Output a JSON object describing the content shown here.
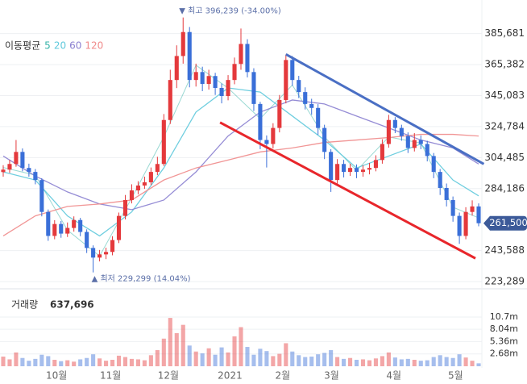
{
  "chart_data": {
    "type": "candlestick",
    "ylim": [
      220146,
      407681
    ],
    "yticks": [
      {
        "value": 223289,
        "label": "223,289"
      },
      {
        "value": 243588,
        "label": "243,588"
      },
      {
        "value": 284186,
        "label": "284,186"
      },
      {
        "value": 304485,
        "label": "304,485"
      },
      {
        "value": 324784,
        "label": "324,784"
      },
      {
        "value": 345083,
        "label": "345,083"
      },
      {
        "value": 365382,
        "label": "365,382"
      },
      {
        "value": 385681,
        "label": "385,681"
      }
    ],
    "xlim": [
      -0.5,
      74.5
    ],
    "xticks": [
      {
        "value": 8.3,
        "label": "10월"
      },
      {
        "value": 16.7,
        "label": "11월"
      },
      {
        "value": 25.7,
        "label": "12월"
      },
      {
        "value": 35.3,
        "label": "2021"
      },
      {
        "value": 43.5,
        "label": "2월"
      },
      {
        "value": 51.1,
        "label": "3월"
      },
      {
        "value": 60.8,
        "label": "4월"
      },
      {
        "value": 70.4,
        "label": "5월"
      }
    ],
    "grid": true,
    "up_color": "#e4393c",
    "down_color": "#3a6fd8",
    "candles": {
      "open": [
        295000,
        296600,
        300300,
        308200,
        297700,
        295100,
        289800,
        268900,
        253200,
        261000,
        254700,
        258400,
        263600,
        255800,
        245300,
        239000,
        241100,
        242700,
        250500,
        266300,
        276700,
        283000,
        286200,
        288300,
        295100,
        300300,
        329100,
        355300,
        371000,
        386700,
        355300,
        360500,
        352700,
        357900,
        350100,
        344800,
        355300,
        365800,
        378900,
        360500,
        339600,
        316000,
        313400,
        323900,
        342200,
        368400,
        355300,
        347400,
        339600,
        337000,
        323900,
        308200,
        289800,
        300300,
        295100,
        297700,
        295100,
        296600,
        297700,
        302900,
        313400,
        329100,
        323900,
        318600,
        310800,
        316000,
        313400,
        305500,
        295100,
        284600,
        276700,
        266300,
        253200,
        268900,
        272500
      ],
      "high": [
        299500,
        303000,
        316000,
        310500,
        300500,
        297000,
        291000,
        270500,
        263500,
        263000,
        262000,
        266000,
        265000,
        257500,
        247000,
        244000,
        245500,
        253000,
        268500,
        280000,
        287000,
        289000,
        292000,
        298000,
        305000,
        333000,
        362000,
        378000,
        396239,
        390000,
        366000,
        364000,
        362000,
        360000,
        353000,
        358500,
        370000,
        389000,
        382000,
        363000,
        341000,
        319000,
        327000,
        345500,
        372000,
        371000,
        358000,
        350500,
        343000,
        339500,
        326000,
        310000,
        303500,
        303000,
        300500,
        300000,
        299500,
        301000,
        306000,
        316500,
        332500,
        331000,
        326000,
        321000,
        320500,
        319000,
        315500,
        307500,
        297000,
        287500,
        279000,
        268500,
        272000,
        276500,
        274500
      ],
      "low": [
        292000,
        294500,
        298500,
        295500,
        292000,
        287000,
        266000,
        250000,
        251000,
        252000,
        252500,
        256000,
        253000,
        242000,
        229299,
        236500,
        238000,
        240500,
        248500,
        264000,
        274500,
        280500,
        284000,
        286500,
        293000,
        299000,
        326500,
        350000,
        366000,
        350500,
        351000,
        348000,
        349000,
        345500,
        340000,
        342000,
        352500,
        362000,
        357000,
        335000,
        310000,
        298000,
        310500,
        321000,
        340000,
        351500,
        343500,
        336000,
        332500,
        319500,
        303500,
        282000,
        287000,
        291500,
        292500,
        291000,
        292000,
        293500,
        295500,
        300500,
        311000,
        320500,
        315500,
        307500,
        308500,
        310000,
        302000,
        291000,
        280000,
        272500,
        262500,
        248000,
        251000,
        266500,
        259500
      ],
      "close": [
        296600,
        300300,
        308200,
        297700,
        295100,
        289800,
        268900,
        253200,
        261000,
        254700,
        258400,
        263600,
        255800,
        245300,
        239000,
        241100,
        242700,
        250500,
        266300,
        276700,
        283000,
        286200,
        288300,
        295100,
        300300,
        329100,
        355300,
        371000,
        386700,
        355300,
        360500,
        352700,
        357900,
        350100,
        344800,
        355300,
        365800,
        378900,
        360500,
        339600,
        316000,
        313400,
        323900,
        342200,
        368400,
        355300,
        347400,
        339600,
        337000,
        323900,
        308200,
        289800,
        300300,
        295100,
        297700,
        295100,
        296600,
        297700,
        302900,
        313400,
        329100,
        323900,
        318600,
        310800,
        316000,
        313400,
        305500,
        295100,
        284600,
        276700,
        266300,
        253200,
        268900,
        272500,
        261500
      ]
    },
    "last_label": "261,500",
    "high_annotation": "▼ 최고 396,239 (-34.00%)",
    "low_annotation": "▲ 최저 229,299 (14.04%)",
    "moving_averages": {
      "label": "이동평균",
      "x": [
        0,
        5,
        10,
        15,
        20,
        25,
        30,
        35,
        40,
        45,
        50,
        55,
        60,
        65,
        70,
        74
      ],
      "series": [
        {
          "name": "5",
          "color": "#36b3a8",
          "values": [
            298000,
            293000,
            257000,
            240000,
            278000,
            318000,
            365000,
            350000,
            330000,
            352000,
            318000,
            296000,
            318000,
            314000,
            272000,
            265000
          ]
        },
        {
          "name": "20",
          "color": "#5fc9dc",
          "values": [
            295100,
            289800,
            266300,
            253200,
            268900,
            297700,
            334300,
            350100,
            347400,
            331700,
            316000,
            297700,
            305500,
            313400,
            289800,
            279400
          ]
        },
        {
          "name": "60",
          "color": "#8a7fd0",
          "values": [
            305500,
            292400,
            282000,
            274100,
            270400,
            276700,
            295100,
            318600,
            334300,
            342200,
            339600,
            331700,
            323900,
            316000,
            310800,
            300300
          ]
        },
        {
          "name": "120",
          "color": "#f08a8a",
          "values": [
            253200,
            266300,
            272500,
            274100,
            276700,
            289800,
            297700,
            302900,
            308200,
            310800,
            314400,
            316000,
            317600,
            319700,
            319700,
            318600
          ]
        }
      ]
    },
    "trendlines": [
      {
        "color": "#4a6fc4",
        "x": [
          44,
          74.8
        ],
        "values": [
          372100,
          300300
        ]
      },
      {
        "color": "#e8262b",
        "x": [
          33.75,
          73.5
        ],
        "values": [
          327500,
          238500
        ]
      }
    ],
    "volume": {
      "title": "거래량",
      "last_label": "637,696",
      "ylim": [
        0,
        15600000
      ],
      "yticks": [
        {
          "value": 2680000,
          "label": "2.68m"
        },
        {
          "value": 5360000,
          "label": "5.36m"
        },
        {
          "value": 8040000,
          "label": "8.04m"
        },
        {
          "value": 10700000,
          "label": "10.7m"
        }
      ],
      "values": [
        2100000,
        1500000,
        3000000,
        1800000,
        1200000,
        1600000,
        2500000,
        2200000,
        1400000,
        1100000,
        1300000,
        1000000,
        1500000,
        1800000,
        2600000,
        1700000,
        1200000,
        1400000,
        2300000,
        2000000,
        1600000,
        1500000,
        1300000,
        2400000,
        3500000,
        6000000,
        10500000,
        7200000,
        9000000,
        4500000,
        3200000,
        2800000,
        3900000,
        2500000,
        4100000,
        3000000,
        6500000,
        8500000,
        4200000,
        2500000,
        3800000,
        3300000,
        2200000,
        2700000,
        5000000,
        3200000,
        2400000,
        2000000,
        2100000,
        2600000,
        2900000,
        3500000,
        2000000,
        1600000,
        1800000,
        1400000,
        1500000,
        1300000,
        1700000,
        2200000,
        3000000,
        1900000,
        1500000,
        1600000,
        1400000,
        1200000,
        1300000,
        2000000,
        2400000,
        2000000,
        1800000,
        2600000,
        1900000,
        1200000,
        637696
      ]
    }
  }
}
